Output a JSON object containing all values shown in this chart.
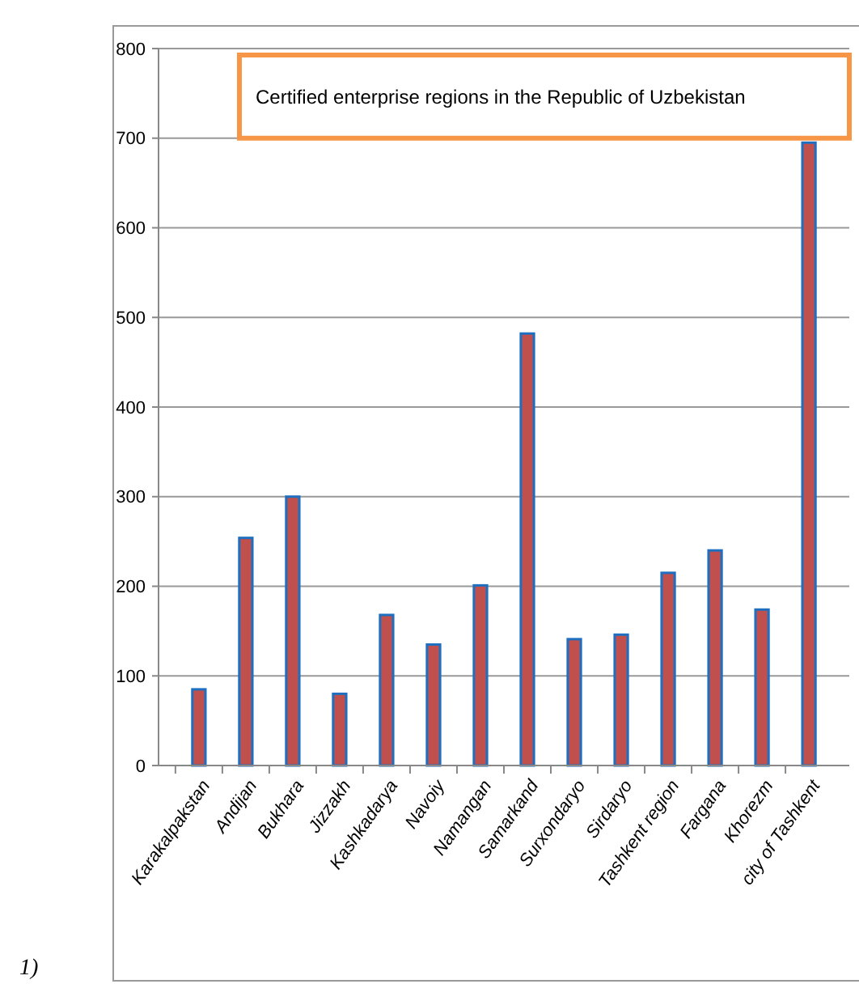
{
  "chart_data": {
    "type": "bar",
    "title": "Certified enterprise regions in the Republic of Uzbekistan",
    "categories": [
      "Karakalpakstan",
      "Andijan",
      "Bukhara",
      "Jizzakh",
      "Kashkadarya",
      "Navoiy",
      "Namangan",
      "Samarkand",
      "Surxondaryo",
      "Sirdaryo",
      "Tashkent region",
      "Fargana",
      "Khorezm",
      "city of Tashkent"
    ],
    "values": [
      85,
      254,
      300,
      80,
      168,
      135,
      201,
      482,
      141,
      146,
      215,
      240,
      174,
      695
    ],
    "color": "#c0504d",
    "ylim": [
      0,
      800
    ],
    "yticks": [
      0,
      100,
      200,
      300,
      400,
      500,
      600,
      700,
      800
    ],
    "grid": "y",
    "annotations": [
      "1)"
    ]
  }
}
